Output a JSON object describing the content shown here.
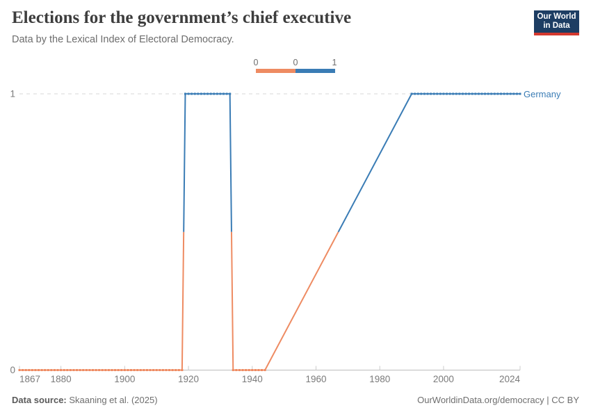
{
  "header": {
    "title": "Elections for the government’s chief executive",
    "subtitle": "Data by the Lexical Index of Electoral Democracy.",
    "logo": {
      "line1": "Our World",
      "line2": "in Data",
      "bg_color": "#1d3d63",
      "accent_color": "#d3382e"
    }
  },
  "legend": {
    "labels": [
      "0",
      "0",
      "1"
    ],
    "bins": [
      {
        "label": "0",
        "color": "#ee8b62"
      },
      {
        "label": "1",
        "color": "#3a7cb5"
      }
    ]
  },
  "chart_data": {
    "type": "line",
    "title": "Elections for the government’s chief executive",
    "subtitle": "Data by the Lexical Index of Electoral Democracy.",
    "entity": "Germany",
    "xlabel": "",
    "ylabel": "",
    "xlim": [
      1867,
      2024
    ],
    "ylim": [
      0,
      1
    ],
    "x_ticks": [
      1867,
      1880,
      1900,
      1920,
      1940,
      1960,
      1980,
      2000,
      2024
    ],
    "y_ticks": [
      0,
      1
    ],
    "grid": "dashed gridline at y=1 only",
    "legend_position": "top-center",
    "value_colors": {
      "0": "#ee8b62",
      "1": "#3a7cb5"
    },
    "series": [
      {
        "name": "Germany",
        "label_color": "#3a7cb5",
        "note": "yearly binary values; markers at each observed year; straight interpolation across 1945-1989 data gap",
        "segments": [
          {
            "start_year": 1867,
            "end_year": 1918,
            "value": 0
          },
          {
            "start_year": 1919,
            "end_year": 1933,
            "value": 1
          },
          {
            "start_year": 1934,
            "end_year": 1944,
            "value": 0
          },
          {
            "start_year": 1990,
            "end_year": 2024,
            "value": 1
          }
        ]
      }
    ]
  },
  "footer": {
    "source_label": "Data source:",
    "source_value": " Skaaning et al. (2025)",
    "rights": "OurWorldinData.org/democracy | CC BY"
  }
}
